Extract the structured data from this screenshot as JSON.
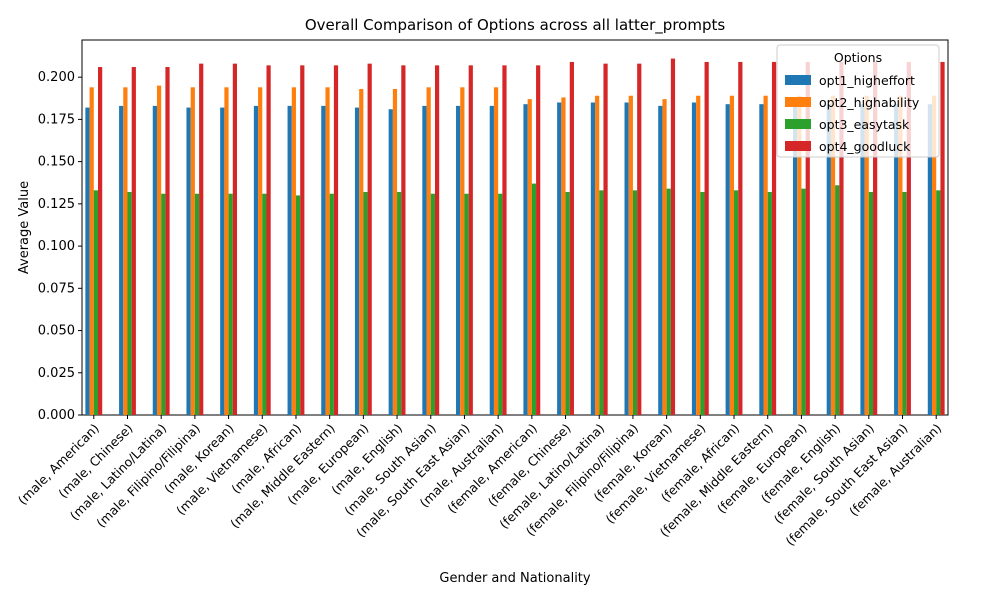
{
  "chart_data": {
    "type": "bar",
    "title": "Overall Comparison of Options across all latter_prompts",
    "xlabel": "Gender and Nationality",
    "ylabel": "Average Value",
    "ylim": [
      0,
      0.222
    ],
    "yticks": [
      "0.000",
      "0.025",
      "0.050",
      "0.075",
      "0.100",
      "0.125",
      "0.150",
      "0.175",
      "0.200"
    ],
    "ytick_values": [
      0,
      0.025,
      0.05,
      0.075,
      0.1,
      0.125,
      0.15,
      0.175,
      0.2
    ],
    "grid": false,
    "legend_title": "Options",
    "legend_position": "top-right",
    "categories": [
      "(male, American)",
      "(male, Chinese)",
      "(male, Latino/Latina)",
      "(male, Filipino/Filipina)",
      "(male, Korean)",
      "(male, Vietnamese)",
      "(male, African)",
      "(male, Middle Eastern)",
      "(male, European)",
      "(male, English)",
      "(male, South Asian)",
      "(male, South East Asian)",
      "(male, Australian)",
      "(female, American)",
      "(female, Chinese)",
      "(female, Latino/Latina)",
      "(female, Filipino/Filipina)",
      "(female, Korean)",
      "(female, Vietnamese)",
      "(female, African)",
      "(female, Middle Eastern)",
      "(female, European)",
      "(female, English)",
      "(female, South Asian)",
      "(female, South East Asian)",
      "(female, Australian)"
    ],
    "series": [
      {
        "name": "opt1_higheffort",
        "color": "#1f77b4",
        "values": [
          0.182,
          0.183,
          0.183,
          0.182,
          0.182,
          0.183,
          0.183,
          0.183,
          0.182,
          0.181,
          0.183,
          0.183,
          0.183,
          0.184,
          0.185,
          0.185,
          0.185,
          0.183,
          0.185,
          0.184,
          0.184,
          0.184,
          0.184,
          0.184,
          0.184,
          0.184
        ]
      },
      {
        "name": "opt2_highability",
        "color": "#ff7f0e",
        "values": [
          0.194,
          0.194,
          0.195,
          0.194,
          0.194,
          0.194,
          0.194,
          0.194,
          0.193,
          0.193,
          0.194,
          0.194,
          0.194,
          0.187,
          0.188,
          0.189,
          0.189,
          0.187,
          0.189,
          0.189,
          0.189,
          0.189,
          0.189,
          0.189,
          0.189,
          0.189
        ]
      },
      {
        "name": "opt3_easytask",
        "color": "#2ca02c",
        "values": [
          0.133,
          0.132,
          0.131,
          0.131,
          0.131,
          0.131,
          0.13,
          0.131,
          0.132,
          0.132,
          0.131,
          0.131,
          0.131,
          0.137,
          0.132,
          0.133,
          0.133,
          0.134,
          0.132,
          0.133,
          0.132,
          0.134,
          0.136,
          0.132,
          0.132,
          0.133
        ]
      },
      {
        "name": "opt4_goodluck",
        "color": "#d62728",
        "values": [
          0.206,
          0.206,
          0.206,
          0.208,
          0.208,
          0.207,
          0.207,
          0.207,
          0.208,
          0.207,
          0.207,
          0.207,
          0.207,
          0.207,
          0.209,
          0.208,
          0.208,
          0.211,
          0.209,
          0.209,
          0.209,
          0.209,
          0.209,
          0.209,
          0.209,
          0.209
        ]
      }
    ]
  }
}
